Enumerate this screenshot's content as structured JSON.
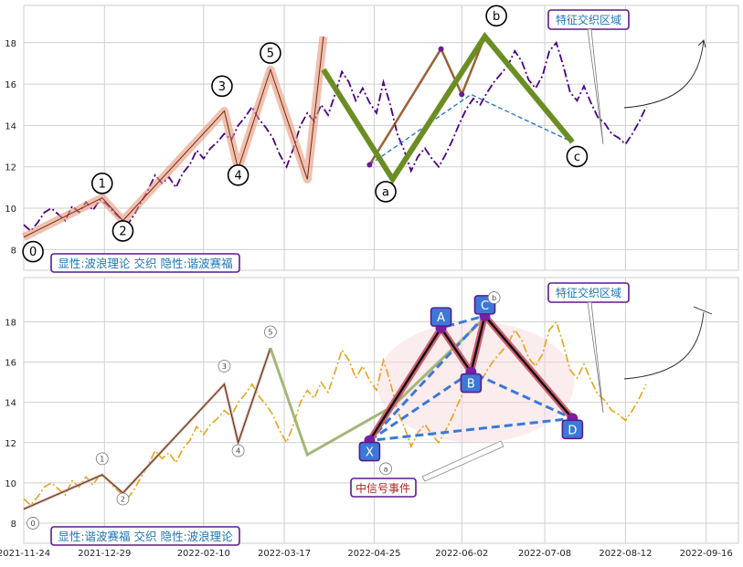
{
  "x_ticks": [
    "2021-11-24",
    "2021-12-29",
    "2022-02-10",
    "2022-03-17",
    "2022-04-25",
    "2022-06-02",
    "2022-07-08",
    "2022-08-12",
    "2022-09-16"
  ],
  "x_tick_days": [
    0,
    35,
    78,
    113,
    152,
    190,
    226,
    261,
    296
  ],
  "chart_data": [
    {
      "type": "line",
      "panel": "top",
      "ylim": [
        7,
        19.8
      ],
      "yticks": [
        8,
        10,
        12,
        14,
        16,
        18
      ],
      "legend_box": "显性:波浪理论 交织 隐性:谐波赛福",
      "annotation_box": "特征交织区域",
      "series": [
        {
          "role": "price",
          "color": "#4b0082",
          "x": [
            0,
            3,
            6,
            9,
            12,
            15,
            18,
            21,
            24,
            27,
            30,
            33,
            36,
            39,
            42,
            45,
            48,
            51,
            54,
            57,
            60,
            63,
            66,
            69,
            72,
            75,
            78,
            81,
            84,
            87,
            90,
            93,
            96,
            99,
            102,
            105,
            108,
            111,
            114,
            117,
            120,
            123,
            126,
            129,
            132,
            135,
            138,
            141,
            144,
            147,
            150,
            153,
            156,
            159,
            162,
            165,
            168,
            171,
            174,
            177,
            180,
            183,
            186,
            189,
            192,
            195,
            198,
            201,
            204,
            207,
            210,
            213,
            216,
            219,
            222,
            225,
            228,
            231,
            234,
            237,
            240,
            243,
            246,
            249,
            252,
            255,
            258,
            261,
            264,
            267,
            270
          ],
          "y": [
            9.2,
            8.9,
            9.3,
            9.8,
            10.0,
            9.7,
            9.4,
            10.1,
            9.8,
            10.3,
            9.9,
            10.4,
            10.2,
            9.8,
            9.5,
            9.2,
            9.7,
            10.3,
            10.9,
            11.6,
            11.2,
            11.5,
            11.0,
            11.7,
            12.1,
            12.8,
            12.4,
            12.9,
            13.2,
            13.6,
            13.3,
            14.0,
            14.4,
            14.9,
            14.3,
            13.9,
            13.4,
            12.6,
            12.0,
            12.9,
            14.0,
            14.6,
            14.2,
            15.0,
            14.5,
            15.5,
            16.6,
            16.1,
            15.2,
            15.8,
            15.1,
            14.6,
            16.1,
            15.0,
            13.6,
            12.8,
            11.8,
            12.5,
            12.9,
            12.4,
            12.0,
            12.6,
            13.3,
            14.1,
            14.8,
            15.3,
            15.0,
            15.6,
            16.1,
            16.5,
            16.9,
            17.6,
            17.1,
            16.2,
            15.8,
            16.4,
            17.6,
            18.0,
            16.9,
            15.6,
            15.2,
            15.9,
            15.1,
            14.4,
            14.1,
            13.6,
            13.4,
            13.1,
            13.6,
            14.2,
            14.9
          ]
        },
        {
          "role": "wave_path",
          "color": "#e9967a",
          "x": [
            0,
            34,
            43,
            87,
            93,
            107,
            123,
            130
          ],
          "y": [
            8.6,
            10.5,
            9.4,
            14.7,
            11.9,
            16.7,
            11.4,
            18.3
          ]
        },
        {
          "role": "harmonic_path",
          "color": "#8b4513",
          "x": [
            150,
            181,
            190,
            200
          ],
          "y": [
            12.1,
            17.7,
            15.5,
            18.3
          ]
        },
        {
          "role": "abc_path",
          "color": "#6b8e23",
          "x": [
            130,
            160,
            200,
            238
          ],
          "y": [
            16.7,
            11.4,
            18.3,
            13.2
          ]
        },
        {
          "role": "harmonic_dashed",
          "color": "#1e6fc8",
          "x": [
            150,
            194,
            238
          ],
          "y": [
            12.1,
            15.5,
            13.2
          ]
        }
      ],
      "wave_labels": [
        {
          "text": "0",
          "x": 4,
          "y": 7.9
        },
        {
          "text": "1",
          "x": 34,
          "y": 11.2
        },
        {
          "text": "2",
          "x": 43,
          "y": 8.9
        },
        {
          "text": "3",
          "x": 86,
          "y": 15.9
        },
        {
          "text": "4",
          "x": 93,
          "y": 11.6
        },
        {
          "text": "5",
          "x": 107,
          "y": 17.5
        },
        {
          "text": "a",
          "x": 157,
          "y": 10.8
        },
        {
          "text": "b",
          "x": 205,
          "y": 19.3
        },
        {
          "text": "c",
          "x": 240,
          "y": 12.5
        }
      ]
    },
    {
      "type": "line",
      "panel": "bottom",
      "ylim": [
        7,
        20.2
      ],
      "yticks": [
        8,
        10,
        12,
        14,
        16,
        18
      ],
      "legend_box": "显性:谐波赛福 交织 隐性:波浪理论",
      "annotation_box": "特征交织区域",
      "signal_box": "中信号事件",
      "series": [
        {
          "role": "price",
          "color": "#e8a317",
          "x": [
            0,
            3,
            6,
            9,
            12,
            15,
            18,
            21,
            24,
            27,
            30,
            33,
            36,
            39,
            42,
            45,
            48,
            51,
            54,
            57,
            60,
            63,
            66,
            69,
            72,
            75,
            78,
            81,
            84,
            87,
            90,
            93,
            96,
            99,
            102,
            105,
            108,
            111,
            114,
            117,
            120,
            123,
            126,
            129,
            132,
            135,
            138,
            141,
            144,
            147,
            150,
            153,
            156,
            159,
            162,
            165,
            168,
            171,
            174,
            177,
            180,
            183,
            186,
            189,
            192,
            195,
            198,
            201,
            204,
            207,
            210,
            213,
            216,
            219,
            222,
            225,
            228,
            231,
            234,
            237,
            240,
            243,
            246,
            249,
            252,
            255,
            258,
            261,
            264,
            267,
            270
          ],
          "y": [
            9.2,
            8.9,
            9.3,
            9.8,
            10.0,
            9.7,
            9.4,
            10.1,
            9.8,
            10.3,
            9.9,
            10.4,
            10.2,
            9.8,
            9.5,
            9.2,
            9.7,
            10.3,
            10.9,
            11.6,
            11.2,
            11.5,
            11.0,
            11.7,
            12.1,
            12.8,
            12.4,
            12.9,
            13.2,
            13.6,
            13.3,
            14.0,
            14.4,
            14.9,
            14.3,
            13.9,
            13.4,
            12.6,
            12.0,
            12.9,
            14.0,
            14.6,
            14.2,
            15.0,
            14.5,
            15.5,
            16.6,
            16.1,
            15.2,
            15.8,
            15.1,
            14.6,
            16.1,
            15.0,
            13.6,
            12.8,
            11.8,
            12.5,
            12.9,
            12.4,
            12.0,
            12.6,
            13.3,
            14.1,
            14.8,
            15.3,
            15.0,
            15.6,
            16.1,
            16.5,
            16.9,
            17.6,
            17.1,
            16.2,
            15.8,
            16.4,
            17.6,
            18.0,
            16.9,
            15.6,
            15.2,
            15.9,
            15.1,
            14.4,
            14.1,
            13.6,
            13.4,
            13.1,
            13.6,
            14.2,
            14.9
          ]
        },
        {
          "role": "wave_path",
          "color": "#c9a08a",
          "x": [
            0,
            34,
            43,
            87,
            93,
            107
          ],
          "y": [
            8.7,
            10.4,
            9.5,
            14.9,
            12.0,
            16.7
          ]
        },
        {
          "role": "abc_path",
          "color": "#9aaf6a",
          "x": [
            107,
            123,
            160,
            200
          ],
          "y": [
            16.7,
            11.4,
            13.8,
            18.2
          ]
        },
        {
          "role": "harmonic_path",
          "color": "#111111",
          "x": [
            150,
            181,
            194,
            200,
            238
          ],
          "y": [
            12.1,
            17.7,
            15.5,
            18.3,
            13.2
          ]
        },
        {
          "role": "harmonic_dashed",
          "color": "#3c78d8",
          "x": [
            150,
            194,
            238,
            150,
            200,
            181
          ],
          "y": [
            12.1,
            15.5,
            13.2,
            12.1,
            18.3,
            17.7
          ]
        }
      ],
      "harmonic_labels": [
        {
          "text": "X",
          "x": 150,
          "y": 12.1
        },
        {
          "text": "A",
          "x": 181,
          "y": 17.7
        },
        {
          "text": "B",
          "x": 194,
          "y": 15.5
        },
        {
          "text": "C",
          "x": 200,
          "y": 18.3
        },
        {
          "text": "D",
          "x": 238,
          "y": 13.2
        }
      ],
      "wave_labels": [
        {
          "text": "0",
          "x": 4,
          "y": 8.0
        },
        {
          "text": "1",
          "x": 34,
          "y": 11.2
        },
        {
          "text": "2",
          "x": 43,
          "y": 9.2
        },
        {
          "text": "3",
          "x": 87,
          "y": 15.8
        },
        {
          "text": "4",
          "x": 93,
          "y": 11.6
        },
        {
          "text": "5",
          "x": 107,
          "y": 17.5
        },
        {
          "text": "a",
          "x": 157,
          "y": 10.7
        },
        {
          "text": "b",
          "x": 204,
          "y": 19.2
        }
      ]
    }
  ]
}
